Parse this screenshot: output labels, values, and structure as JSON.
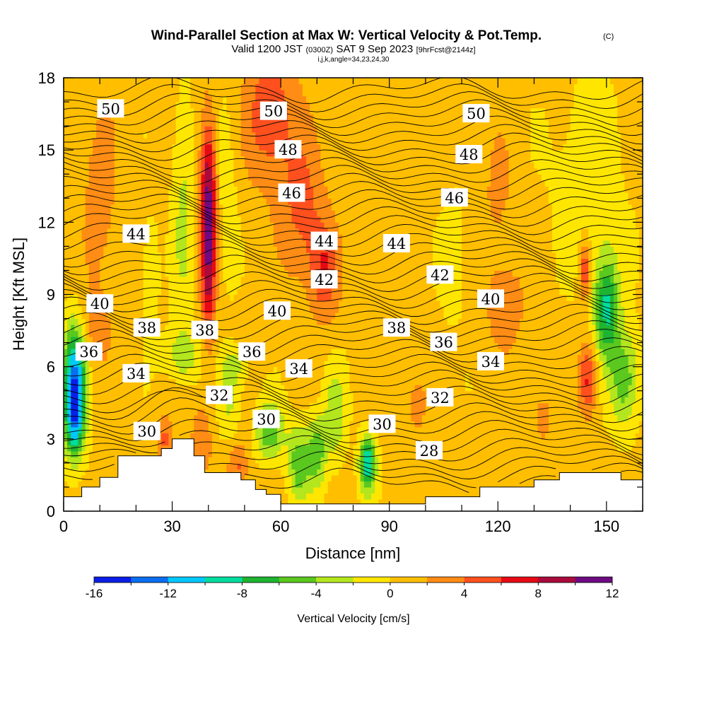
{
  "chart_data": {
    "type": "heatmap",
    "title": "Wind-Parallel Section at Max W: Vertical Velocity & Pot.Temp.",
    "title_mark": "(C)",
    "subtitle_parts": [
      "Valid 1200 JST",
      "(0300Z)",
      "SAT 9 Sep 2023",
      "[9hrFcst@2144z]"
    ],
    "subtitle2": "i,j,k,angle=34,23,24,30",
    "xlabel": "Distance [nm]",
    "ylabel": "Height [Kft MSL]",
    "xlim": [
      0,
      160
    ],
    "ylim": [
      0,
      18
    ],
    "x_ticks": [
      0,
      30,
      60,
      90,
      120,
      150
    ],
    "x_tick_labels": [
      "0",
      "30",
      "60",
      "90",
      "120",
      "150"
    ],
    "y_ticks": [
      0,
      3,
      6,
      9,
      12,
      15,
      18
    ],
    "y_tick_labels": [
      "0",
      "3",
      "6",
      "9",
      "12",
      "15",
      "18"
    ],
    "colorbar": {
      "label": "Vertical Velocity [cm/s]",
      "levels": [
        -16,
        -14,
        -12,
        -10,
        -8,
        -6,
        -4,
        -2,
        0,
        2,
        4,
        6,
        8,
        10,
        12
      ],
      "tick_values": [
        -16,
        -12,
        -8,
        -4,
        0,
        4,
        8,
        12
      ],
      "tick_labels": [
        "-16",
        "-12",
        "-8",
        "-4",
        "0",
        "4",
        "8",
        "12"
      ],
      "colors": [
        "#0a1ee6",
        "#0a6ef0",
        "#00c8ff",
        "#00dca0",
        "#1eb432",
        "#5ac81e",
        "#b4e61e",
        "#ffe600",
        "#ffbe00",
        "#ff8c14",
        "#ff501e",
        "#e60a14",
        "#aa0a3c",
        "#6e0a82"
      ]
    },
    "terrain_profile": [
      [
        0,
        0.6
      ],
      [
        5,
        0.6
      ],
      [
        5,
        1.0
      ],
      [
        10,
        1.0
      ],
      [
        10,
        1.4
      ],
      [
        15,
        1.4
      ],
      [
        15,
        2.3
      ],
      [
        27,
        2.3
      ],
      [
        27,
        2.6
      ],
      [
        30,
        2.6
      ],
      [
        30,
        3.0
      ],
      [
        36,
        3.0
      ],
      [
        36,
        2.3
      ],
      [
        39,
        2.3
      ],
      [
        39,
        1.6
      ],
      [
        49,
        1.6
      ],
      [
        49,
        1.3
      ],
      [
        53,
        1.3
      ],
      [
        53,
        0.9
      ],
      [
        56,
        0.9
      ],
      [
        56,
        0.7
      ],
      [
        60,
        0.7
      ],
      [
        60,
        0.3
      ],
      [
        100,
        0.3
      ],
      [
        100,
        0.6
      ],
      [
        115,
        0.6
      ],
      [
        115,
        1.0
      ],
      [
        130,
        1.0
      ],
      [
        130,
        1.3
      ],
      [
        137,
        1.3
      ],
      [
        137,
        1.6
      ],
      [
        154,
        1.6
      ],
      [
        154,
        1.3
      ],
      [
        160,
        1.3
      ]
    ],
    "isentrope_labels": [
      {
        "label": "50",
        "x": 13,
        "y": 16.7
      },
      {
        "label": "50",
        "x": 58,
        "y": 16.6
      },
      {
        "label": "50",
        "x": 114,
        "y": 16.5
      },
      {
        "label": "48",
        "x": 62,
        "y": 15.0
      },
      {
        "label": "48",
        "x": 112,
        "y": 14.8
      },
      {
        "label": "46",
        "x": 63,
        "y": 13.2
      },
      {
        "label": "46",
        "x": 108,
        "y": 13.0
      },
      {
        "label": "44",
        "x": 20,
        "y": 11.5
      },
      {
        "label": "44",
        "x": 72,
        "y": 11.2
      },
      {
        "label": "44",
        "x": 92,
        "y": 11.1
      },
      {
        "label": "42",
        "x": 72,
        "y": 9.6
      },
      {
        "label": "42",
        "x": 104,
        "y": 9.8
      },
      {
        "label": "40",
        "x": 10,
        "y": 8.6
      },
      {
        "label": "40",
        "x": 59,
        "y": 8.3
      },
      {
        "label": "40",
        "x": 118,
        "y": 8.8
      },
      {
        "label": "38",
        "x": 23,
        "y": 7.6
      },
      {
        "label": "38",
        "x": 39,
        "y": 7.5
      },
      {
        "label": "38",
        "x": 92,
        "y": 7.6
      },
      {
        "label": "36",
        "x": 7,
        "y": 6.6
      },
      {
        "label": "36",
        "x": 52,
        "y": 6.6
      },
      {
        "label": "36",
        "x": 105,
        "y": 7.0
      },
      {
        "label": "34",
        "x": 20,
        "y": 5.7
      },
      {
        "label": "34",
        "x": 65,
        "y": 5.9
      },
      {
        "label": "34",
        "x": 118,
        "y": 6.2
      },
      {
        "label": "32",
        "x": 43,
        "y": 4.8
      },
      {
        "label": "32",
        "x": 104,
        "y": 4.7
      },
      {
        "label": "30",
        "x": 23,
        "y": 3.3
      },
      {
        "label": "30",
        "x": 56,
        "y": 3.8
      },
      {
        "label": "30",
        "x": 88,
        "y": 3.6
      },
      {
        "label": "28",
        "x": 101,
        "y": 2.5
      }
    ],
    "w_features": [
      {
        "x": 3,
        "y": 5.0,
        "sx": 3,
        "sy": 2.5,
        "w": -15
      },
      {
        "x": 3,
        "y": 3.5,
        "sx": 2,
        "sy": 1.0,
        "w": -3
      },
      {
        "x": 33,
        "y": 12.5,
        "sx": 3,
        "sy": 5.0,
        "w": -3
      },
      {
        "x": 33,
        "y": 6.5,
        "sx": 5,
        "sy": 1.0,
        "w": -4
      },
      {
        "x": 47,
        "y": 6.0,
        "sx": 4,
        "sy": 0.8,
        "w": -3
      },
      {
        "x": 46,
        "y": 4.5,
        "sx": 3,
        "sy": 1.8,
        "w": -3
      },
      {
        "x": 57,
        "y": 3.3,
        "sx": 4,
        "sy": 1.2,
        "w": -6
      },
      {
        "x": 65,
        "y": 2.0,
        "sx": 3,
        "sy": 1.6,
        "w": -6
      },
      {
        "x": 70,
        "y": 2.5,
        "sx": 2.5,
        "sy": 1.5,
        "w": -6
      },
      {
        "x": 75,
        "y": 4.0,
        "sx": 3,
        "sy": 2.0,
        "w": -4
      },
      {
        "x": 84,
        "y": 2.0,
        "sx": 2.2,
        "sy": 1.2,
        "w": -10
      },
      {
        "x": 150,
        "y": 8.5,
        "sx": 3.5,
        "sy": 2.2,
        "w": -9
      },
      {
        "x": 155,
        "y": 5.5,
        "sx": 4,
        "sy": 2.0,
        "w": -6
      },
      {
        "x": 45,
        "y": 13.5,
        "sx": 3,
        "sy": 4.0,
        "w": -2
      },
      {
        "x": 145,
        "y": 14.0,
        "sx": 10,
        "sy": 4.0,
        "w": -2
      },
      {
        "x": 24,
        "y": 10.0,
        "sx": 2.5,
        "sy": 2.5,
        "w": -2
      },
      {
        "x": 108,
        "y": 10.5,
        "sx": 4,
        "sy": 3.0,
        "w": -1.5
      },
      {
        "x": 40,
        "y": 11.0,
        "sx": 2,
        "sy": 4.0,
        "w": 9
      },
      {
        "x": 40,
        "y": 14.0,
        "sx": 2.5,
        "sy": 3.0,
        "w": 4
      },
      {
        "x": 57,
        "y": 16.5,
        "sx": 7,
        "sy": 3.0,
        "w": 5
      },
      {
        "x": 66,
        "y": 12.5,
        "sx": 6,
        "sy": 3.0,
        "w": 4
      },
      {
        "x": 72,
        "y": 10.0,
        "sx": 4,
        "sy": 2.0,
        "w": 5
      },
      {
        "x": 10,
        "y": 13.0,
        "sx": 5,
        "sy": 4.0,
        "w": 2.5
      },
      {
        "x": 9,
        "y": 7.5,
        "sx": 4,
        "sy": 1.5,
        "w": 2.5
      },
      {
        "x": 38,
        "y": 3.0,
        "sx": 3,
        "sy": 1.5,
        "w": 3
      },
      {
        "x": 48,
        "y": 1.8,
        "sx": 3,
        "sy": 1.2,
        "w": 4
      },
      {
        "x": 28,
        "y": 3.0,
        "sx": 2,
        "sy": 1.0,
        "w": 4
      },
      {
        "x": 145,
        "y": 5.5,
        "sx": 2.5,
        "sy": 1.5,
        "w": 6
      },
      {
        "x": 144,
        "y": 10.0,
        "sx": 1.5,
        "sy": 1.2,
        "w": 6
      },
      {
        "x": 122,
        "y": 8.5,
        "sx": 6,
        "sy": 2.0,
        "w": 2.5
      },
      {
        "x": 120,
        "y": 13.0,
        "sx": 5,
        "sy": 3.0,
        "w": 1.8
      },
      {
        "x": 97,
        "y": 4.5,
        "sx": 4,
        "sy": 2.0,
        "w": 2
      },
      {
        "x": 132,
        "y": 4.0,
        "sx": 4,
        "sy": 1.8,
        "w": 2
      },
      {
        "x": 88,
        "y": 8.5,
        "sx": 6,
        "sy": 1.2,
        "w": 1.5
      }
    ]
  }
}
